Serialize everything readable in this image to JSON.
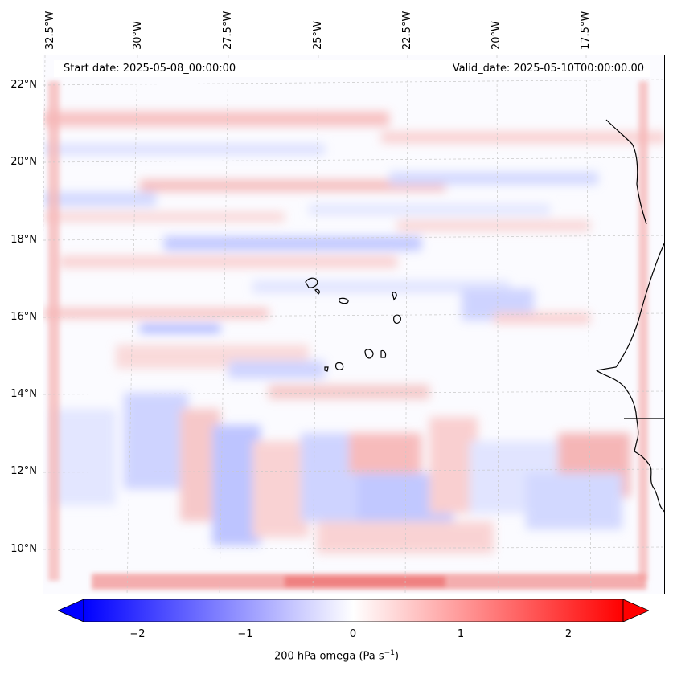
{
  "header": {
    "start_date": "Start date: 2025-05-08_00:00:00",
    "valid_date": "Valid_date: 2025-05-10T00:00:00.00"
  },
  "longitude_labels": [
    "32.5°W",
    "30°W",
    "27.5°W",
    "25°W",
    "22.5°W",
    "20°W",
    "17.5°W"
  ],
  "latitude_labels": [
    "22°N",
    "20°N",
    "18°N",
    "16°N",
    "14°N",
    "12°N",
    "10°N"
  ],
  "field": {
    "variable": "200 hPa omega",
    "colormap": "bwr",
    "colors": {
      "negative": "#0000ff",
      "zero": "#ffffff",
      "positive": "#ff0000"
    },
    "range": [
      -2.5,
      2.5
    ],
    "extend": "both"
  },
  "colorbar": {
    "ticks": [
      "−2",
      "−1",
      "0",
      "1",
      "2"
    ],
    "label_main": "200 hPa omega (Pa s",
    "label_exp": "−1",
    "label_end": ")"
  }
}
